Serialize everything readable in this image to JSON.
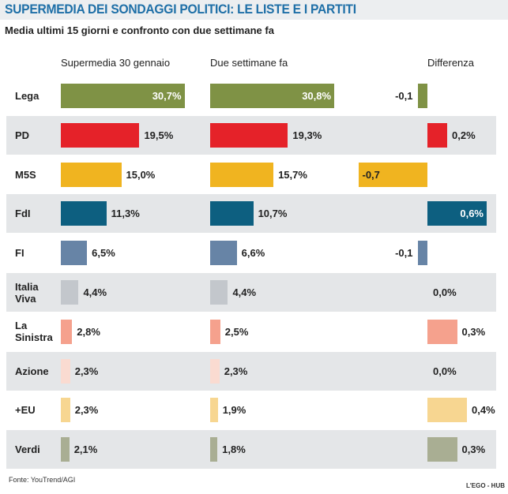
{
  "header": {
    "title": "SUPERMEDIA DEI SONDAGGI POLITICI: LE LISTE E I PARTITI",
    "subtitle": "Media ultimi 15 giorni e confronto con due settimane fa"
  },
  "columns": {
    "current": "Supermedia 30 gennaio",
    "previous": "Due settimane fa",
    "difference": "Differenza"
  },
  "footer": {
    "source": "Fonte: YouTrend/AGI",
    "brand": "L'EGO - HUB"
  },
  "chart_data": {
    "type": "bar",
    "title": "SUPERMEDIA DEI SONDAGGI POLITICI: LE LISTE E I PARTITI",
    "subtitle": "Media ultimi 15 giorni e confronto con due settimane fa",
    "categories": [
      "Lega",
      "PD",
      "M5S",
      "FdI",
      "FI",
      "Italia\nViva",
      "La\nSinistra",
      "Azione",
      "+EU",
      "Verdi"
    ],
    "series": [
      {
        "name": "Supermedia 30 gennaio",
        "values": [
          30.7,
          19.5,
          15.0,
          11.3,
          6.5,
          4.4,
          2.8,
          2.3,
          2.3,
          2.1
        ],
        "labels": [
          "30,7%",
          "19,5%",
          "15,0%",
          "11,3%",
          "6,5%",
          "4,4%",
          "2,8%",
          "2,3%",
          "2,3%",
          "2,1%"
        ]
      },
      {
        "name": "Due settimane fa",
        "values": [
          30.8,
          19.3,
          15.7,
          10.7,
          6.6,
          4.4,
          2.5,
          2.3,
          1.9,
          1.8
        ],
        "labels": [
          "30,8%",
          "19,3%",
          "15,7%",
          "10,7%",
          "6,6%",
          "4,4%",
          "2,5%",
          "2,3%",
          "1,9%",
          "1,8%"
        ]
      },
      {
        "name": "Differenza",
        "values": [
          -0.1,
          0.2,
          -0.7,
          0.6,
          -0.1,
          0.0,
          0.3,
          0.0,
          0.4,
          0.3
        ],
        "labels": [
          "-0,1",
          "0,2%",
          "-0,7",
          "0,6%",
          "-0,1",
          "0,0%",
          "0,3%",
          "0,0%",
          "0,4%",
          "0,3%"
        ]
      }
    ],
    "colors": [
      "#7f9245",
      "#e52229",
      "#f0b420",
      "#0d5f80",
      "#6784a6",
      "#c3c7cc",
      "#f5a18d",
      "#fadbd1",
      "#f7d691",
      "#a9ae93"
    ],
    "shaded_rows": [
      1,
      3,
      5,
      7,
      9
    ]
  }
}
